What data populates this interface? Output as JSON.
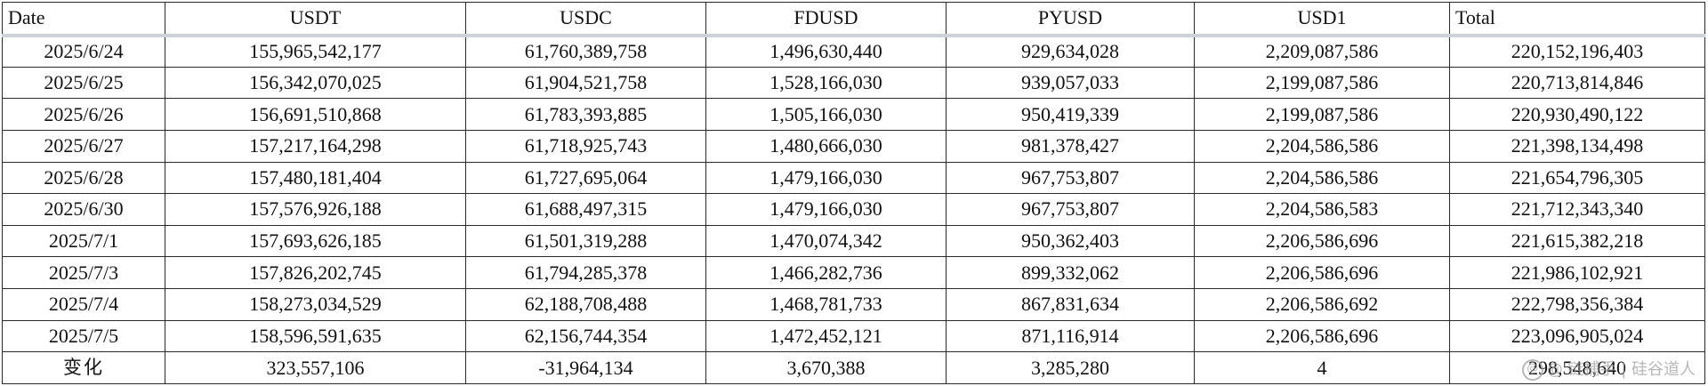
{
  "table": {
    "headers": [
      "Date",
      "USDT",
      "USDC",
      "FDUSD",
      "PYUSD",
      "USD1",
      "Total"
    ],
    "rows": [
      [
        "2025/6/24",
        "155,965,542,177",
        "61,760,389,758",
        "1,496,630,440",
        "929,634,028",
        "2,209,087,586",
        "220,152,196,403"
      ],
      [
        "2025/6/25",
        "156,342,070,025",
        "61,904,521,758",
        "1,528,166,030",
        "939,057,033",
        "2,199,087,586",
        "220,713,814,846"
      ],
      [
        "2025/6/26",
        "156,691,510,868",
        "61,783,393,885",
        "1,505,166,030",
        "950,419,339",
        "2,199,087,586",
        "220,930,490,122"
      ],
      [
        "2025/6/27",
        "157,217,164,298",
        "61,718,925,743",
        "1,480,666,030",
        "981,378,427",
        "2,204,586,586",
        "221,398,134,498"
      ],
      [
        "2025/6/28",
        "157,480,181,404",
        "61,727,695,064",
        "1,479,166,030",
        "967,753,807",
        "2,204,586,586",
        "221,654,796,305"
      ],
      [
        "2025/6/30",
        "157,576,926,188",
        "61,688,497,315",
        "1,479,166,030",
        "967,753,807",
        "2,204,586,583",
        "221,712,343,340"
      ],
      [
        "2025/7/1",
        "157,693,626,185",
        "61,501,319,288",
        "1,470,074,342",
        "950,362,403",
        "2,206,586,696",
        "221,615,382,218"
      ],
      [
        "2025/7/3",
        "157,826,202,745",
        "61,794,285,378",
        "1,466,282,736",
        "899,332,062",
        "2,206,586,696",
        "221,986,102,921"
      ],
      [
        "2025/7/4",
        "158,273,034,529",
        "62,188,708,488",
        "1,468,781,733",
        "867,831,634",
        "2,206,586,692",
        "222,798,356,384"
      ],
      [
        "2025/7/5",
        "158,596,591,635",
        "62,156,744,354",
        "1,472,452,121",
        "871,116,914",
        "2,206,586,696",
        "223,096,905,024"
      ]
    ],
    "change_row": [
      "变化",
      "323,557,106",
      "-31,964,134",
      "3,670,388",
      "3,285,280",
      "4",
      "298,548,640"
    ]
  },
  "watermark": {
    "icon": "at-sign-icon",
    "text": "@ 链捕手 | 硅谷道人"
  }
}
